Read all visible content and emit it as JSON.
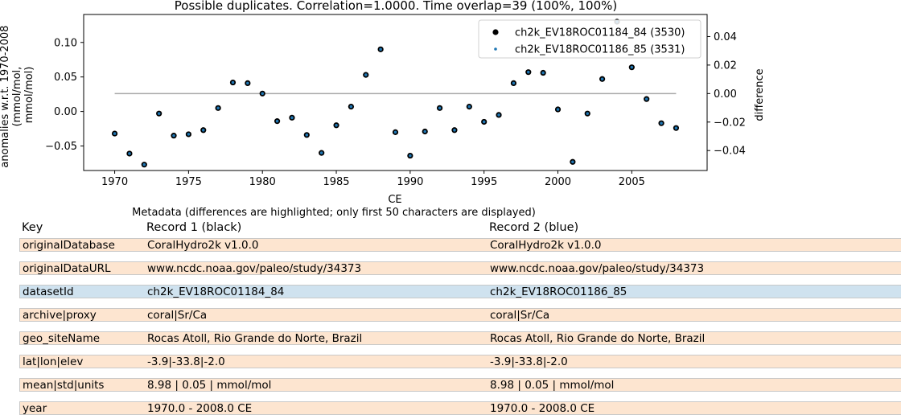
{
  "chart_data": {
    "type": "scatter",
    "title": "Possible duplicates. Correlation=1.0000. Time overlap=39 (100%, 100%)",
    "xlabel": "CE",
    "ylabel_lines": [
      "anomalies w.r.t. 1970-2008",
      "(mmol/mol,",
      "mmol/mol)"
    ],
    "y2label": "difference",
    "xlim": [
      1967.9,
      2010.1
    ],
    "ylim": [
      -0.0855,
      0.1405
    ],
    "y2lim": [
      -0.054,
      0.0555
    ],
    "xticks": [
      1970,
      1975,
      1980,
      1985,
      1990,
      1995,
      2000,
      2005
    ],
    "yticks": [
      -0.05,
      0.0,
      0.05,
      0.1
    ],
    "ytick_labels": [
      "−0.05",
      "0.00",
      "0.05",
      "0.10"
    ],
    "y2ticks": [
      -0.04,
      -0.02,
      0.0,
      0.02,
      0.04
    ],
    "y2tick_labels": [
      "−0.04",
      "−0.02",
      "0.00",
      "0.02",
      "0.04"
    ],
    "grid": false,
    "legend_position": "top-right",
    "series": [
      {
        "name": "ch2k_EV18ROC01184_84 (3530)",
        "color": "#000000",
        "marker": "large-dot",
        "x": [
          1970,
          1971,
          1972,
          1973,
          1974,
          1975,
          1976,
          1977,
          1978,
          1979,
          1980,
          1981,
          1982,
          1983,
          1984,
          1985,
          1986,
          1987,
          1988,
          1989,
          1990,
          1991,
          1992,
          1993,
          1994,
          1995,
          1996,
          1997,
          1998,
          1999,
          2000,
          2001,
          2002,
          2003,
          2004,
          2005,
          2006,
          2007,
          2008
        ],
        "y": [
          -0.032,
          -0.061,
          -0.077,
          -0.003,
          -0.035,
          -0.033,
          -0.027,
          0.005,
          0.042,
          0.041,
          0.026,
          -0.014,
          -0.009,
          -0.034,
          -0.06,
          -0.02,
          0.007,
          0.053,
          0.09,
          -0.03,
          -0.064,
          -0.029,
          0.005,
          -0.027,
          0.007,
          -0.015,
          -0.005,
          0.041,
          0.057,
          0.056,
          0.003,
          -0.073,
          -0.003,
          0.047,
          0.13,
          0.064,
          0.018,
          -0.017,
          -0.024
        ]
      },
      {
        "name": "ch2k_EV18ROC01186_85 (3531)",
        "color": "#1f77b4",
        "marker": "small-dot",
        "x": [
          1970,
          1971,
          1972,
          1973,
          1974,
          1975,
          1976,
          1977,
          1978,
          1979,
          1980,
          1981,
          1982,
          1983,
          1984,
          1985,
          1986,
          1987,
          1988,
          1989,
          1990,
          1991,
          1992,
          1993,
          1994,
          1995,
          1996,
          1997,
          1998,
          1999,
          2000,
          2001,
          2002,
          2003,
          2004,
          2005,
          2006,
          2007,
          2008
        ],
        "y": [
          -0.032,
          -0.061,
          -0.077,
          -0.003,
          -0.035,
          -0.033,
          -0.027,
          0.005,
          0.042,
          0.041,
          0.026,
          -0.014,
          -0.009,
          -0.034,
          -0.06,
          -0.02,
          0.007,
          0.053,
          0.09,
          -0.03,
          -0.064,
          -0.029,
          0.005,
          -0.027,
          0.007,
          -0.015,
          -0.005,
          0.041,
          0.057,
          0.056,
          0.003,
          -0.073,
          -0.003,
          0.047,
          0.13,
          0.064,
          0.018,
          -0.017,
          -0.024
        ]
      }
    ],
    "difference_line": {
      "x": [
        1970,
        2008
      ],
      "y": [
        0.0,
        0.0
      ],
      "color": "#a9a9a9"
    }
  },
  "metadata": {
    "title": "Metadata (differences are highlighted; only first 50 characters are displayed)",
    "headers": {
      "key": "Key",
      "record1": "Record 1 (black)",
      "record2": "Record 2 (blue)"
    },
    "rows": [
      {
        "key": "originalDatabase",
        "record1": "CoralHydro2k v1.0.0",
        "record2": "CoralHydro2k v1.0.0",
        "differs": true
      },
      {
        "key": "originalDataURL",
        "record1": "www.ncdc.noaa.gov/paleo/study/34373",
        "record2": "www.ncdc.noaa.gov/paleo/study/34373",
        "differs": true
      },
      {
        "key": "datasetId",
        "record1": "ch2k_EV18ROC01184_84",
        "record2": "ch2k_EV18ROC01186_85",
        "differs": false
      },
      {
        "key": "archive|proxy",
        "record1": "coral|Sr/Ca",
        "record2": "coral|Sr/Ca",
        "differs": true
      },
      {
        "key": "geo_siteName",
        "record1": "Rocas Atoll, Rio Grande do Norte, Brazil",
        "record2": "Rocas Atoll, Rio Grande do Norte, Brazil",
        "differs": true
      },
      {
        "key": "lat|lon|elev",
        "record1": "-3.9|-33.8|-2.0",
        "record2": "-3.9|-33.8|-2.0",
        "differs": true
      },
      {
        "key": "mean|std|units",
        "record1": "8.98 | 0.05 | mmol/mol",
        "record2": "8.98 | 0.05 | mmol/mol",
        "differs": true
      },
      {
        "key": "year",
        "record1": "1970.0 - 2008.0 CE",
        "record2": "1970.0 - 2008.0 CE",
        "differs": true
      }
    ]
  }
}
